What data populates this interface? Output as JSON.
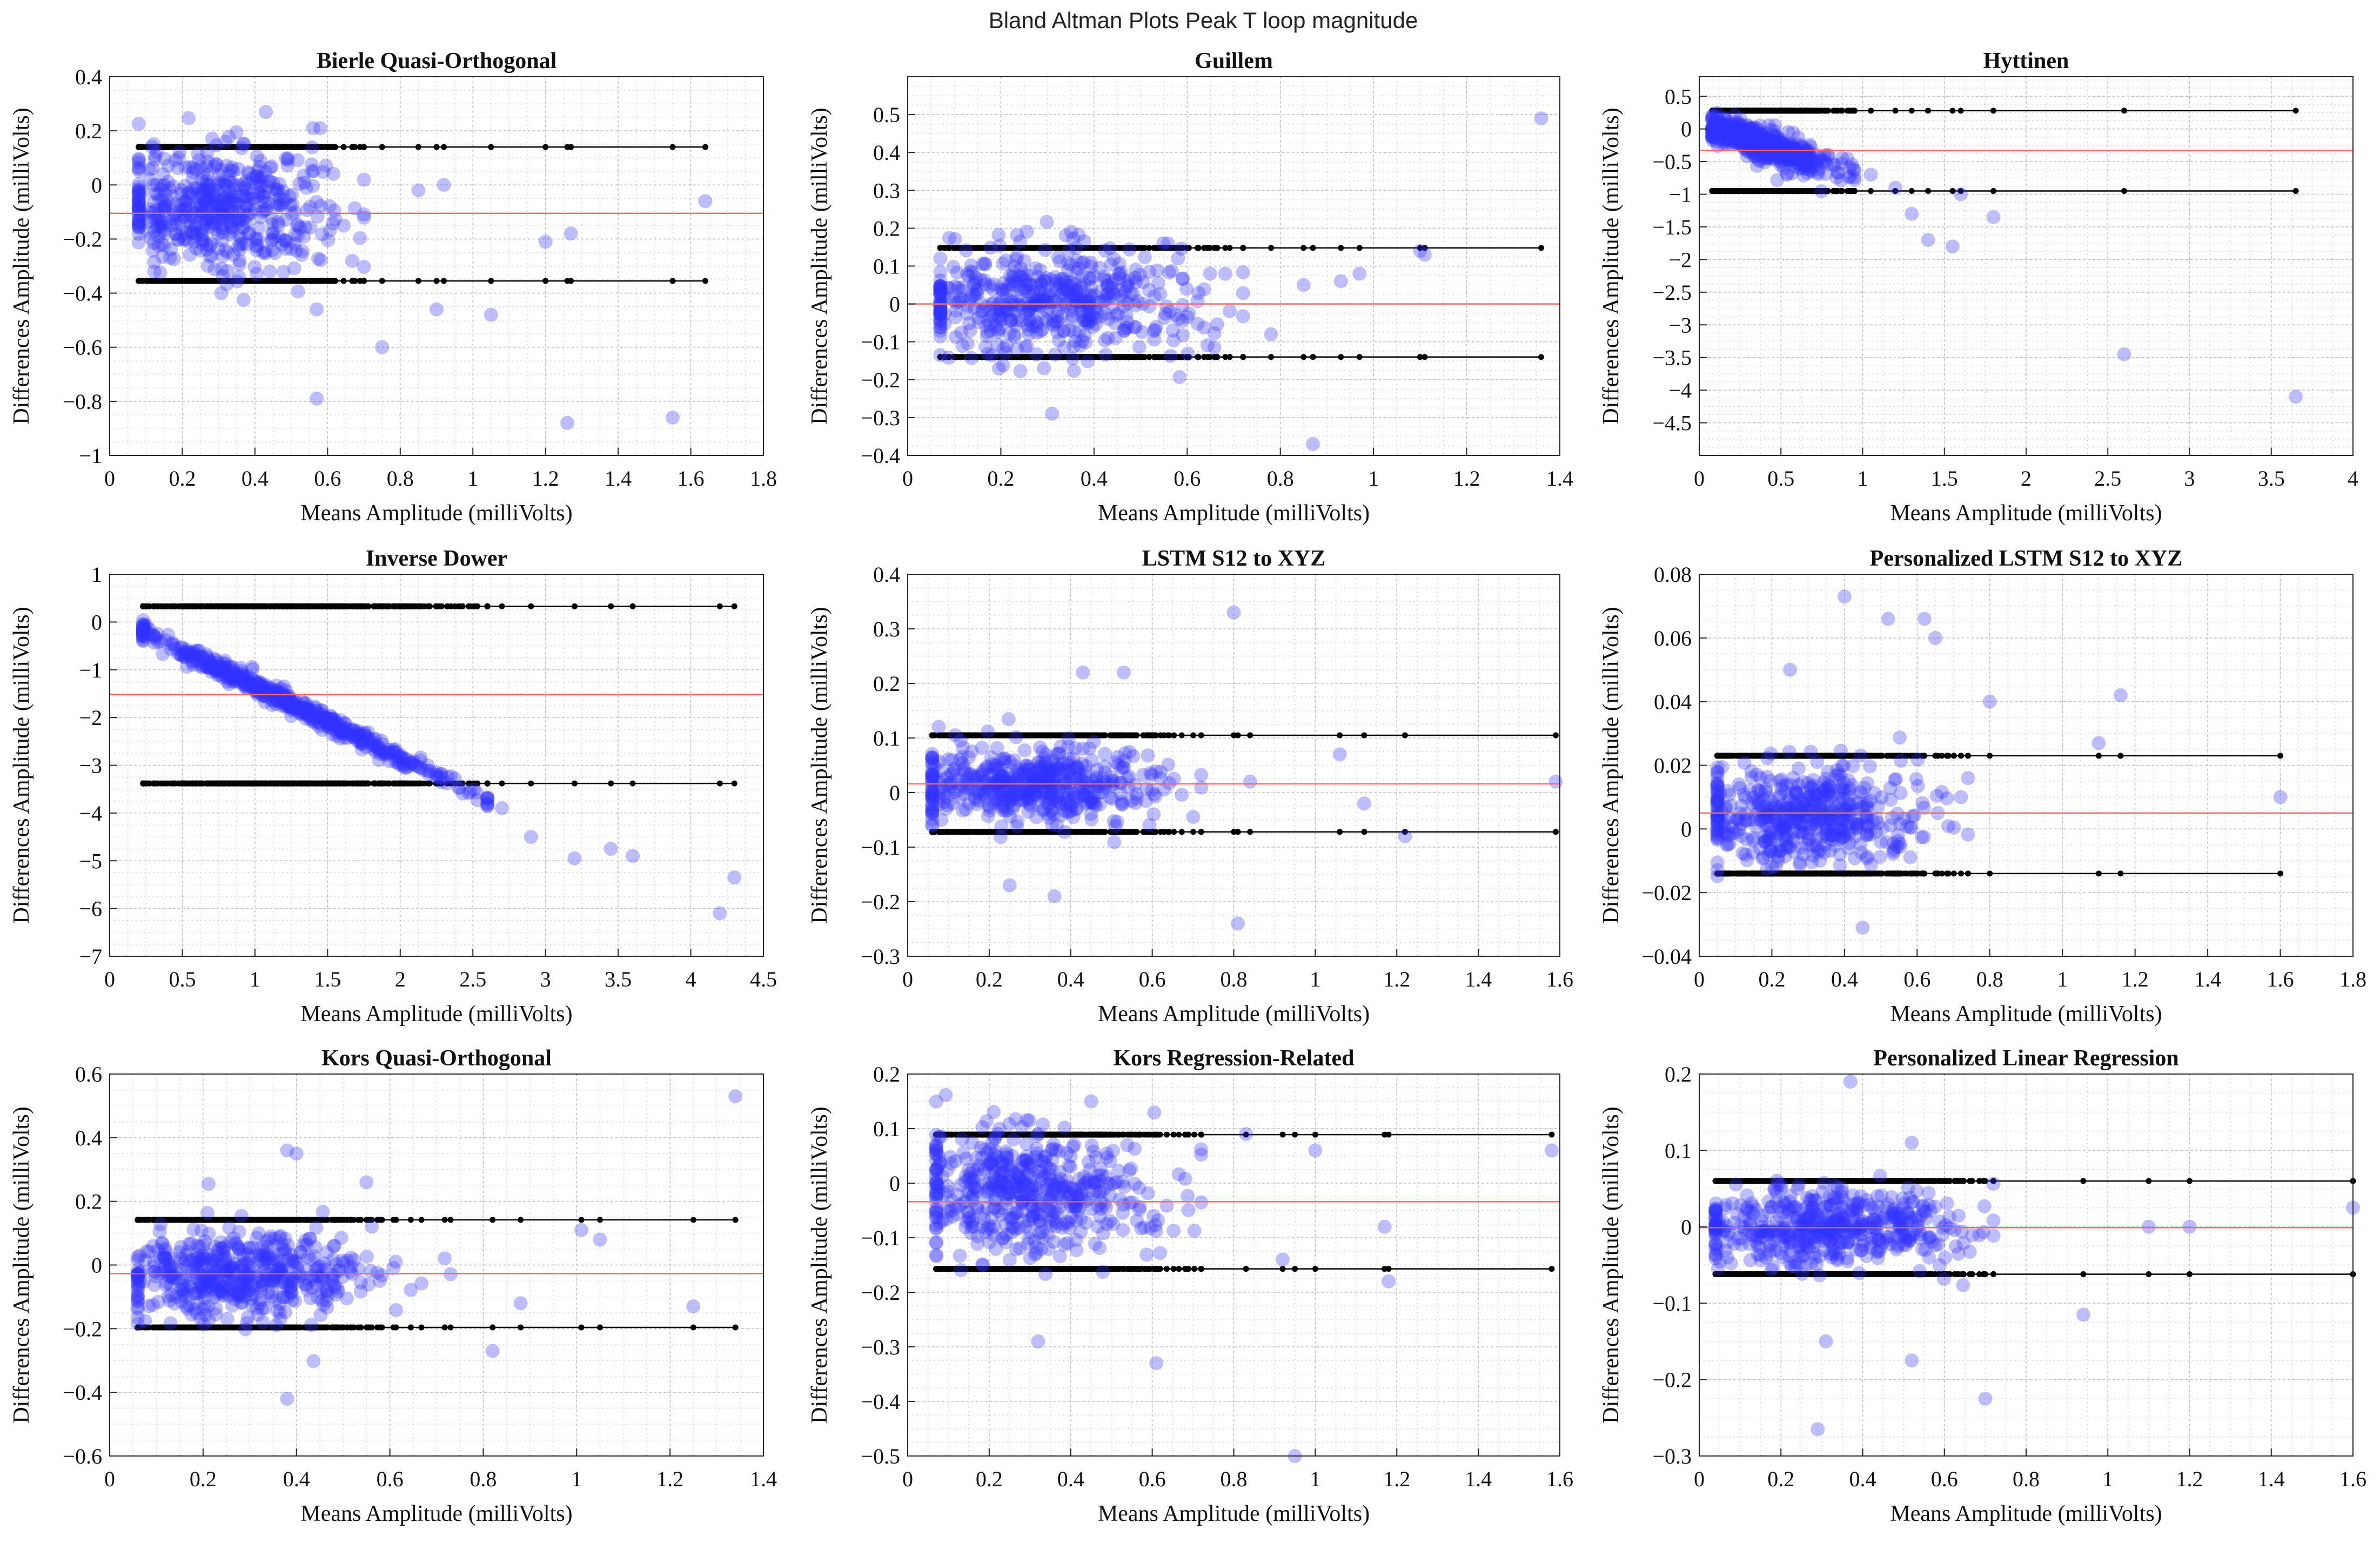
{
  "figure": {
    "title": "Bland Altman Plots Peak T loop magnitude"
  },
  "colors": {
    "points": "#3333ff",
    "mean_line": "#ff6666",
    "limits": "#000000",
    "grid": "#c8c8c8"
  },
  "chart_data": [
    {
      "type": "scatter",
      "title": "Bierle Quasi-Orthogonal",
      "xlabel": "Means Amplitude (milliVolts)",
      "ylabel": "Differences Amplitude (milliVolts)",
      "xlim": [
        0,
        1.8
      ],
      "ylim": [
        -1,
        0.4
      ],
      "xticks": [
        0,
        0.2,
        0.4,
        0.6,
        0.8,
        1,
        1.2,
        1.4,
        1.6,
        1.8
      ],
      "xtick_labels": [
        "0",
        "0.2",
        "0.4",
        "0.6",
        "0.8",
        "1",
        "1.2",
        "1.4",
        "1.6",
        "1.8"
      ],
      "yticks": [
        -1,
        -0.8,
        -0.6,
        -0.4,
        -0.2,
        0,
        0.2,
        0.4
      ],
      "ytick_labels": [
        "−1",
        "−0.8",
        "−0.6",
        "−0.4",
        "−0.2",
        "0",
        "0.2",
        "0.4"
      ],
      "mean": -0.105,
      "upper_loa": 0.14,
      "lower_loa": -0.355,
      "cluster": {
        "x_center": 0.3,
        "x_spread": 0.15,
        "x_min": 0.08,
        "x_max": 0.7,
        "y_base": -0.07,
        "y_slope": -0.05,
        "y_spread": 0.11,
        "count": 520
      },
      "outliers": [
        [
          0.43,
          0.27
        ],
        [
          0.56,
          0.21
        ],
        [
          0.58,
          0.21
        ],
        [
          0.57,
          -0.79
        ],
        [
          0.75,
          -0.6
        ],
        [
          1.05,
          -0.48
        ],
        [
          1.26,
          -0.88
        ],
        [
          1.55,
          -0.86
        ],
        [
          1.64,
          -0.06
        ],
        [
          1.2,
          -0.21
        ],
        [
          1.27,
          -0.18
        ],
        [
          0.9,
          -0.46
        ],
        [
          0.92,
          0.0
        ],
        [
          0.85,
          -0.02
        ],
        [
          0.57,
          -0.46
        ]
      ]
    },
    {
      "type": "scatter",
      "title": "Guillem",
      "xlabel": "Means Amplitude (milliVolts)",
      "ylabel": "Differences Amplitude (milliVolts)",
      "xlim": [
        0,
        1.4
      ],
      "ylim": [
        -0.4,
        0.6
      ],
      "xticks": [
        0,
        0.2,
        0.4,
        0.6,
        0.8,
        1,
        1.2,
        1.4
      ],
      "xtick_labels": [
        "0",
        "0.2",
        "0.4",
        "0.6",
        "0.8",
        "1",
        "1.2",
        "1.4"
      ],
      "yticks": [
        -0.4,
        -0.3,
        -0.2,
        -0.1,
        0,
        0.1,
        0.2,
        0.3,
        0.4,
        0.5
      ],
      "ytick_labels": [
        "−0.4",
        "−0.3",
        "−0.2",
        "−0.1",
        "0",
        "0.1",
        "0.2",
        "0.3",
        "0.4",
        "0.5"
      ],
      "mean": 0.0,
      "upper_loa": 0.148,
      "lower_loa": -0.14,
      "cluster": {
        "x_center": 0.3,
        "x_spread": 0.16,
        "x_min": 0.07,
        "x_max": 0.72,
        "y_base": 0.01,
        "y_slope": 0.0,
        "y_spread": 0.07,
        "count": 520
      },
      "outliers": [
        [
          1.36,
          0.49
        ],
        [
          0.87,
          -0.37
        ],
        [
          1.1,
          0.14
        ],
        [
          1.11,
          0.13
        ],
        [
          0.97,
          0.08
        ],
        [
          0.93,
          0.06
        ],
        [
          0.85,
          0.05
        ],
        [
          0.31,
          -0.29
        ],
        [
          0.78,
          -0.08
        ]
      ]
    },
    {
      "type": "scatter",
      "title": "Hyttinen",
      "xlabel": "Means Amplitude (milliVolts)",
      "ylabel": "Differences Amplitude (milliVolts)",
      "xlim": [
        0,
        4
      ],
      "ylim": [
        -5,
        0.8
      ],
      "xticks": [
        0,
        0.5,
        1,
        1.5,
        2,
        2.5,
        3,
        3.5,
        4
      ],
      "xtick_labels": [
        "0",
        "0.5",
        "1",
        "1.5",
        "2",
        "2.5",
        "3",
        "3.5",
        "4"
      ],
      "yticks": [
        -4.5,
        -4,
        -3.5,
        -3,
        -2.5,
        -2,
        -1.5,
        -1,
        -0.5,
        0,
        0.5
      ],
      "ytick_labels": [
        "−4.5",
        "−4",
        "−3.5",
        "−3",
        "−2.5",
        "−2",
        "−1.5",
        "−1",
        "−0.5",
        "0",
        "0.5"
      ],
      "mean": -0.33,
      "upper_loa": 0.28,
      "lower_loa": -0.95,
      "cluster": {
        "x_center": 0.4,
        "x_spread": 0.2,
        "x_min": 0.08,
        "x_max": 0.95,
        "y_base": 0.1,
        "y_slope": -0.85,
        "y_spread": 0.12,
        "count": 520
      },
      "outliers": [
        [
          2.6,
          -3.45
        ],
        [
          3.65,
          -4.1
        ],
        [
          1.55,
          -1.8
        ],
        [
          1.8,
          -1.35
        ],
        [
          1.3,
          -1.3
        ],
        [
          1.4,
          -1.7
        ],
        [
          1.6,
          -1.0
        ],
        [
          1.2,
          -0.9
        ],
        [
          1.05,
          -0.7
        ]
      ]
    },
    {
      "type": "scatter",
      "title": "Inverse Dower",
      "xlabel": "Means Amplitude (milliVolts)",
      "ylabel": "Differences Amplitude (milliVolts)",
      "xlim": [
        0,
        4.5
      ],
      "ylim": [
        -7,
        1
      ],
      "xticks": [
        0,
        0.5,
        1,
        1.5,
        2,
        2.5,
        3,
        3.5,
        4,
        4.5
      ],
      "xtick_labels": [
        "0",
        "0.5",
        "1",
        "1.5",
        "2",
        "2.5",
        "3",
        "3.5",
        "4",
        "4.5"
      ],
      "yticks": [
        -7,
        -6,
        -5,
        -4,
        -3,
        -2,
        -1,
        0,
        1
      ],
      "ytick_labels": [
        "−7",
        "−6",
        "−5",
        "−4",
        "−3",
        "−2",
        "−1",
        "0",
        "1"
      ],
      "mean": -1.52,
      "upper_loa": 0.33,
      "lower_loa": -3.38,
      "cluster": {
        "x_center": 1.2,
        "x_spread": 0.6,
        "x_min": 0.23,
        "x_max": 2.6,
        "y_base": 0.15,
        "y_slope": -1.5,
        "y_spread": 0.1,
        "count": 520
      },
      "outliers": [
        [
          2.9,
          -4.5
        ],
        [
          3.2,
          -4.95
        ],
        [
          3.45,
          -4.75
        ],
        [
          3.6,
          -4.9
        ],
        [
          4.3,
          -5.35
        ],
        [
          4.2,
          -6.1
        ],
        [
          2.6,
          -3.7
        ],
        [
          2.7,
          -3.9
        ]
      ]
    },
    {
      "type": "scatter",
      "title": "LSTM S12 to XYZ",
      "xlabel": "Means Amplitude (milliVolts)",
      "ylabel": "Differences Amplitude (milliVolts)",
      "xlim": [
        0,
        1.6
      ],
      "ylim": [
        -0.3,
        0.4
      ],
      "xticks": [
        0,
        0.2,
        0.4,
        0.6,
        0.8,
        1,
        1.2,
        1.4,
        1.6
      ],
      "xtick_labels": [
        "0",
        "0.2",
        "0.4",
        "0.6",
        "0.8",
        "1",
        "1.2",
        "1.4",
        "1.6"
      ],
      "yticks": [
        -0.3,
        -0.2,
        -0.1,
        0,
        0.1,
        0.2,
        0.3,
        0.4
      ],
      "ytick_labels": [
        "−0.3",
        "−0.2",
        "−0.1",
        "0",
        "0.1",
        "0.2",
        "0.3",
        "0.4"
      ],
      "mean": 0.016,
      "upper_loa": 0.105,
      "lower_loa": -0.072,
      "cluster": {
        "x_center": 0.3,
        "x_spread": 0.16,
        "x_min": 0.06,
        "x_max": 0.72,
        "y_base": 0.015,
        "y_slope": 0.0,
        "y_spread": 0.035,
        "count": 520
      },
      "outliers": [
        [
          0.8,
          0.33
        ],
        [
          0.81,
          -0.24
        ],
        [
          0.84,
          0.02
        ],
        [
          1.06,
          0.07
        ],
        [
          1.12,
          -0.02
        ],
        [
          1.22,
          -0.08
        ],
        [
          1.59,
          0.02
        ],
        [
          0.43,
          0.22
        ],
        [
          0.53,
          0.22
        ],
        [
          0.36,
          -0.19
        ],
        [
          0.25,
          -0.17
        ]
      ]
    },
    {
      "type": "scatter",
      "title": "Personalized LSTM S12 to XYZ",
      "xlabel": "Means Amplitude (milliVolts)",
      "ylabel": "Differences Amplitude (milliVolts)",
      "xlim": [
        0,
        1.8
      ],
      "ylim": [
        -0.04,
        0.08
      ],
      "xticks": [
        0,
        0.2,
        0.4,
        0.6,
        0.8,
        1,
        1.2,
        1.4,
        1.6,
        1.8
      ],
      "xtick_labels": [
        "0",
        "0.2",
        "0.4",
        "0.6",
        "0.8",
        "1",
        "1.2",
        "1.4",
        "1.6",
        "1.8"
      ],
      "yticks": [
        -0.04,
        -0.02,
        0,
        0.02,
        0.04,
        0.06,
        0.08
      ],
      "ytick_labels": [
        "−0.04",
        "−0.02",
        "0",
        "0.02",
        "0.04",
        "0.06",
        "0.08"
      ],
      "mean": 0.005,
      "upper_loa": 0.023,
      "lower_loa": -0.014,
      "cluster": {
        "x_center": 0.3,
        "x_spread": 0.17,
        "x_min": 0.05,
        "x_max": 0.74,
        "y_base": 0.004,
        "y_slope": 0.0,
        "y_spread": 0.008,
        "count": 520
      },
      "outliers": [
        [
          0.4,
          0.073
        ],
        [
          0.52,
          0.066
        ],
        [
          0.62,
          0.066
        ],
        [
          0.65,
          0.06
        ],
        [
          1.16,
          0.042
        ],
        [
          0.8,
          0.04
        ],
        [
          1.6,
          0.01
        ],
        [
          0.45,
          -0.031
        ],
        [
          0.25,
          0.05
        ],
        [
          1.1,
          0.027
        ]
      ]
    },
    {
      "type": "scatter",
      "title": "Kors Quasi-Orthogonal",
      "xlabel": "Means Amplitude (milliVolts)",
      "ylabel": "Differences Amplitude (milliVolts)",
      "xlim": [
        0,
        1.4
      ],
      "ylim": [
        -0.6,
        0.6
      ],
      "xticks": [
        0,
        0.2,
        0.4,
        0.6,
        0.8,
        1,
        1.2,
        1.4
      ],
      "xtick_labels": [
        "0",
        "0.2",
        "0.4",
        "0.6",
        "0.8",
        "1",
        "1.2",
        "1.4"
      ],
      "yticks": [
        -0.6,
        -0.4,
        -0.2,
        0,
        0.2,
        0.4,
        0.6
      ],
      "ytick_labels": [
        "−0.6",
        "−0.4",
        "−0.2",
        "0",
        "0.2",
        "0.4",
        "0.6"
      ],
      "mean": -0.027,
      "upper_loa": 0.142,
      "lower_loa": -0.196,
      "cluster": {
        "x_center": 0.28,
        "x_spread": 0.14,
        "x_min": 0.06,
        "x_max": 0.73,
        "y_base": -0.03,
        "y_slope": 0.0,
        "y_spread": 0.07,
        "count": 520
      },
      "outliers": [
        [
          1.34,
          0.53
        ],
        [
          0.38,
          0.36
        ],
        [
          0.4,
          0.35
        ],
        [
          0.38,
          -0.42
        ],
        [
          1.01,
          0.11
        ],
        [
          1.05,
          0.08
        ],
        [
          1.25,
          -0.13
        ],
        [
          0.82,
          -0.27
        ],
        [
          0.88,
          -0.12
        ],
        [
          0.55,
          0.26
        ]
      ]
    },
    {
      "type": "scatter",
      "title": "Kors Regression-Related",
      "xlabel": "Means Amplitude (milliVolts)",
      "ylabel": "Differences Amplitude (milliVolts)",
      "xlim": [
        0,
        1.6
      ],
      "ylim": [
        -0.5,
        0.2
      ],
      "xticks": [
        0,
        0.2,
        0.4,
        0.6,
        0.8,
        1,
        1.2,
        1.4,
        1.6
      ],
      "xtick_labels": [
        "0",
        "0.2",
        "0.4",
        "0.6",
        "0.8",
        "1",
        "1.2",
        "1.4",
        "1.6"
      ],
      "yticks": [
        -0.5,
        -0.4,
        -0.3,
        -0.2,
        -0.1,
        0,
        0.1,
        0.2
      ],
      "ytick_labels": [
        "−0.5",
        "−0.4",
        "−0.3",
        "−0.2",
        "−0.1",
        "0",
        "0.1",
        "0.2"
      ],
      "mean": -0.034,
      "upper_loa": 0.089,
      "lower_loa": -0.157,
      "cluster": {
        "x_center": 0.3,
        "x_spread": 0.16,
        "x_min": 0.07,
        "x_max": 0.72,
        "y_base": -0.01,
        "y_slope": -0.04,
        "y_spread": 0.055,
        "count": 520
      },
      "outliers": [
        [
          0.95,
          -0.5
        ],
        [
          0.61,
          -0.33
        ],
        [
          0.32,
          -0.29
        ],
        [
          1.58,
          0.06
        ],
        [
          1.18,
          -0.18
        ],
        [
          1.17,
          -0.08
        ],
        [
          0.83,
          0.09
        ],
        [
          0.45,
          0.15
        ],
        [
          0.92,
          -0.14
        ],
        [
          1.0,
          0.06
        ]
      ]
    },
    {
      "type": "scatter",
      "title": "Personalized Linear Regression",
      "xlabel": "Means Amplitude (milliVolts)",
      "ylabel": "Differences Amplitude (milliVolts)",
      "xlim": [
        0,
        1.6
      ],
      "ylim": [
        -0.3,
        0.2
      ],
      "xticks": [
        0,
        0.2,
        0.4,
        0.6,
        0.8,
        1,
        1.2,
        1.4,
        1.6
      ],
      "xtick_labels": [
        "0",
        "0.2",
        "0.4",
        "0.6",
        "0.8",
        "1",
        "1.2",
        "1.4",
        "1.6"
      ],
      "yticks": [
        -0.3,
        -0.2,
        -0.1,
        0,
        0.1,
        0.2
      ],
      "ytick_labels": [
        "−0.3",
        "−0.2",
        "−0.1",
        "0",
        "0.1",
        "0.2"
      ],
      "mean": -0.001,
      "upper_loa": 0.06,
      "lower_loa": -0.062,
      "cluster": {
        "x_center": 0.3,
        "x_spread": 0.16,
        "x_min": 0.04,
        "x_max": 0.72,
        "y_base": 0.0,
        "y_slope": 0.0,
        "y_spread": 0.025,
        "count": 520
      },
      "outliers": [
        [
          0.37,
          0.19
        ],
        [
          0.29,
          -0.265
        ],
        [
          0.31,
          -0.15
        ],
        [
          0.7,
          -0.225
        ],
        [
          0.52,
          -0.175
        ],
        [
          0.94,
          -0.115
        ],
        [
          1.6,
          0.025
        ],
        [
          1.1,
          0.0
        ],
        [
          1.2,
          0.0
        ],
        [
          0.52,
          0.11
        ]
      ]
    }
  ]
}
